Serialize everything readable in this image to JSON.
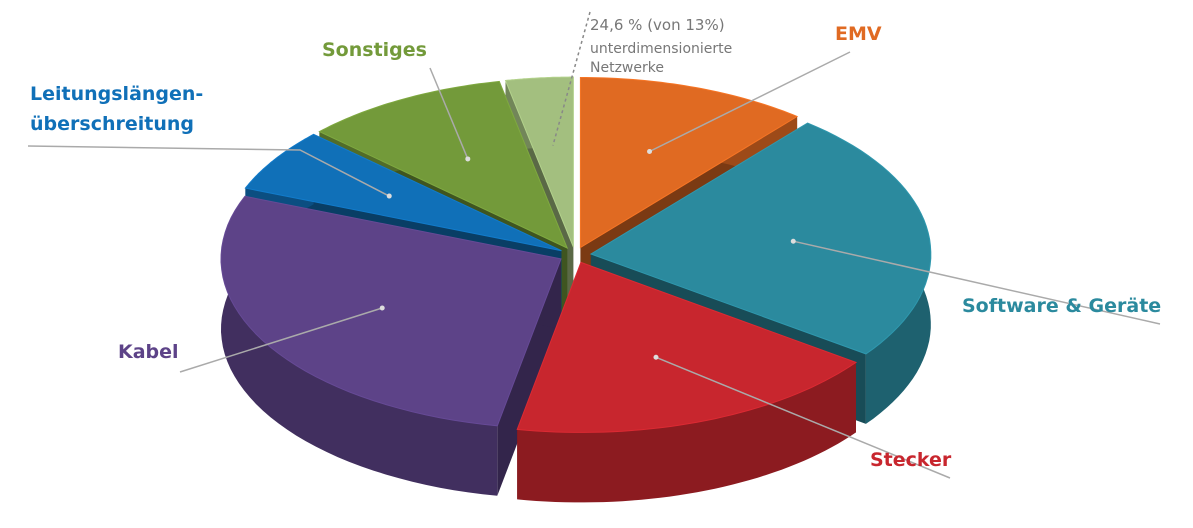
{
  "chart_data": {
    "type": "pie",
    "style": "3d-exploded",
    "categories": [
      "EMV",
      "Software & Geräte",
      "Stecker",
      "Kabel",
      "Leitungslängen-\nüberschreitung",
      "Sonstiges",
      "unterdimensionierte\nNetzwerke"
    ],
    "values": [
      11,
      24,
      18,
      28,
      6,
      9.8,
      3.2
    ],
    "colors": [
      "#e06a22",
      "#2b8a9e",
      "#c8262e",
      "#5d4388",
      "#1070b8",
      "#739a3a",
      "#a3bf7f"
    ],
    "annotation": "24,6 % (von 13%)"
  }
}
